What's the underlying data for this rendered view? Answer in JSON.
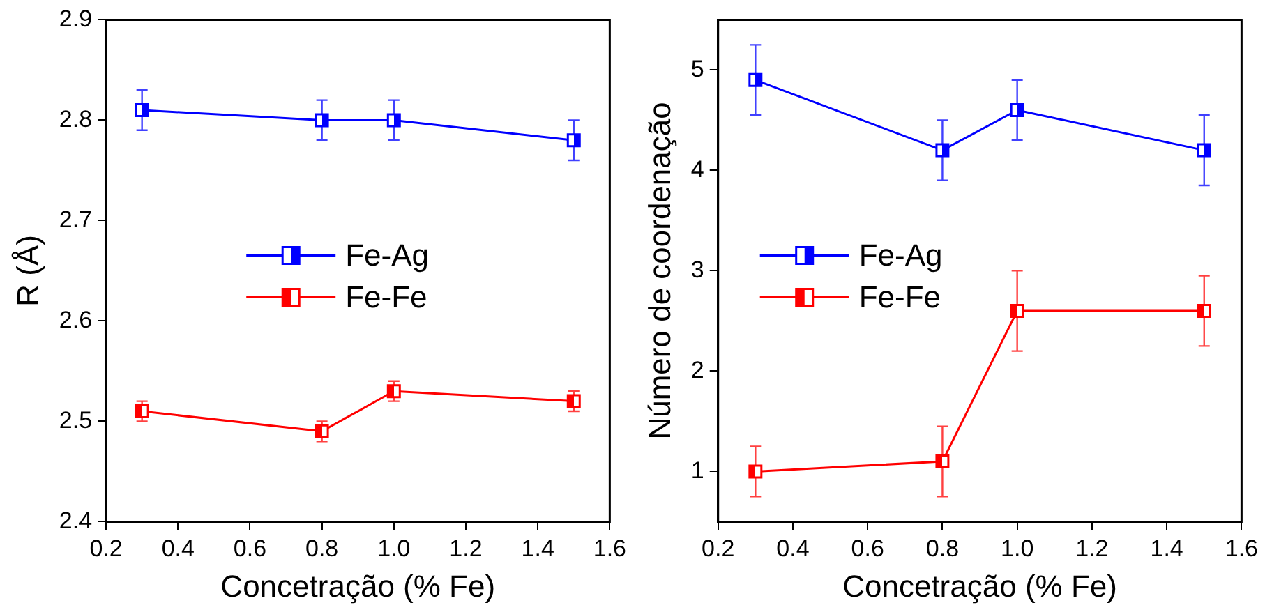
{
  "chart_data": [
    {
      "type": "line",
      "xlabel": "Concetração (% Fe)",
      "ylabel": "R (Å)",
      "x": [
        0.3,
        0.8,
        1.0,
        1.5
      ],
      "xlim": [
        0.2,
        1.6
      ],
      "xticks": [
        0.2,
        0.4,
        0.6,
        0.8,
        {
          "value": 1.0,
          "label": "1.0"
        },
        1.2,
        1.4,
        1.6
      ],
      "ylim": [
        2.4,
        2.9
      ],
      "yticks": [
        2.4,
        2.5,
        2.6,
        2.7,
        2.8,
        2.9
      ],
      "grid": false,
      "legend": "center",
      "marker": "square",
      "series": [
        {
          "name": "Fe-Ag",
          "color": "#0000ff",
          "values": [
            2.81,
            2.8,
            2.8,
            2.78
          ],
          "errors": [
            0.02,
            0.02,
            0.02,
            0.02
          ]
        },
        {
          "name": "Fe-Fe",
          "color": "#ff0000",
          "values": [
            2.51,
            2.49,
            2.53,
            2.52
          ],
          "errors": [
            0.01,
            0.01,
            0.01,
            0.01
          ]
        }
      ]
    },
    {
      "type": "line",
      "xlabel": "Concetração (% Fe)",
      "ylabel": "Número de coordenação",
      "x": [
        0.3,
        0.8,
        1.0,
        1.5
      ],
      "xlim": [
        0.2,
        1.6
      ],
      "xticks": [
        0.2,
        0.4,
        0.6,
        0.8,
        {
          "value": 1.0,
          "label": "1.0"
        },
        1.2,
        1.4,
        1.6
      ],
      "ylim": [
        0.5,
        5.5
      ],
      "yticks": [
        1,
        2,
        3,
        4,
        5
      ],
      "grid": false,
      "legend": "center left",
      "marker": "square",
      "series": [
        {
          "name": "Fe-Ag",
          "color": "#0000ff",
          "values": [
            4.9,
            4.2,
            4.6,
            4.2
          ],
          "errors": [
            0.35,
            0.3,
            0.3,
            0.35
          ]
        },
        {
          "name": "Fe-Fe",
          "color": "#ff0000",
          "values": [
            1.0,
            1.1,
            2.6,
            2.6
          ],
          "errors": [
            0.25,
            0.35,
            0.4,
            0.35
          ]
        }
      ]
    }
  ]
}
